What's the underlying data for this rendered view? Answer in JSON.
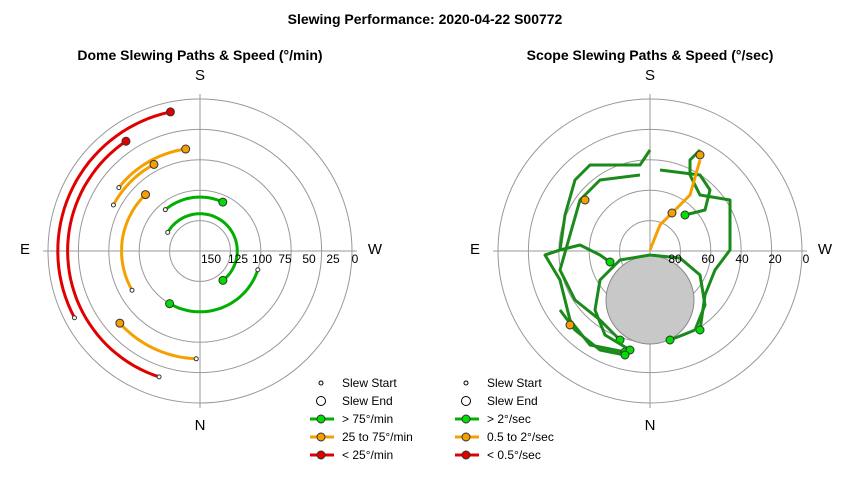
{
  "figure_title": "Slewing Performance: 2020-04-22 S00772",
  "colors": {
    "green": "#00b000",
    "orange": "#f5a000",
    "red": "#e00000",
    "dark_green": "#1a8a1a",
    "ring": "#999999",
    "axis": "#999999"
  },
  "chart_data": [
    {
      "type": "polar-line",
      "title": "Dome Slewing Paths & Speed (°/min)",
      "directions": {
        "top": "S",
        "bottom": "N",
        "left": "E",
        "right": "W"
      },
      "radial_ticks": [
        "150",
        "125",
        "100",
        "75",
        "50",
        "25",
        "0"
      ],
      "radial_values": [
        150,
        125,
        100,
        75,
        50,
        25,
        0
      ],
      "ring_radii_outer": [
        25,
        50,
        75,
        100,
        125,
        150
      ],
      "legend": [
        {
          "label": "Slew Start",
          "kind": "start"
        },
        {
          "label": "Slew End",
          "kind": "end"
        },
        {
          "label": "> 75°/min",
          "kind": "line",
          "color": "green"
        },
        {
          "label": "25 to 75°/min",
          "kind": "line",
          "color": "orange"
        },
        {
          "label": "< 25°/min",
          "kind": "line",
          "color": "red"
        }
      ],
      "series": [
        {
          "color": "red",
          "r": 145,
          "from": 152,
          "to": 258
        },
        {
          "color": "red",
          "r": 135,
          "from": 108,
          "to": 236
        },
        {
          "color": "orange",
          "r": 110,
          "from": 92,
          "to": 138
        },
        {
          "color": "orange",
          "r": 105,
          "from": 218,
          "to": 262
        },
        {
          "color": "orange",
          "r": 80,
          "from": 150,
          "to": 226
        },
        {
          "color": "orange",
          "r": 100,
          "from": 208,
          "to": 242
        },
        {
          "color": "green",
          "r": 62,
          "from": 18,
          "to": 120
        },
        {
          "color": "green",
          "r": 55,
          "from": 230,
          "to": 295
        },
        {
          "color": "green",
          "r": 38,
          "from": 210,
          "to": 52
        }
      ]
    },
    {
      "type": "polar-line",
      "title": "Scope Slewing Paths & Speed (°/sec)",
      "directions": {
        "top": "S",
        "bottom": "N",
        "left": "E",
        "right": "W"
      },
      "radial_ticks": [
        "80",
        "60",
        "40",
        "20",
        "0"
      ],
      "radial_values": [
        80,
        60,
        40,
        20,
        0
      ],
      "legend": [
        {
          "label": "Slew Start",
          "kind": "start"
        },
        {
          "label": "Slew End",
          "kind": "end"
        },
        {
          "label": "> 2°/sec",
          "kind": "line",
          "color": "green"
        },
        {
          "label": "0.5 to 2°/sec",
          "kind": "line",
          "color": "orange"
        },
        {
          "label": "< 0.5°/sec",
          "kind": "line",
          "color": "red"
        }
      ],
      "obstruction": {
        "alt": 58,
        "az_center": 0,
        "radius_deg": 22
      }
    }
  ]
}
